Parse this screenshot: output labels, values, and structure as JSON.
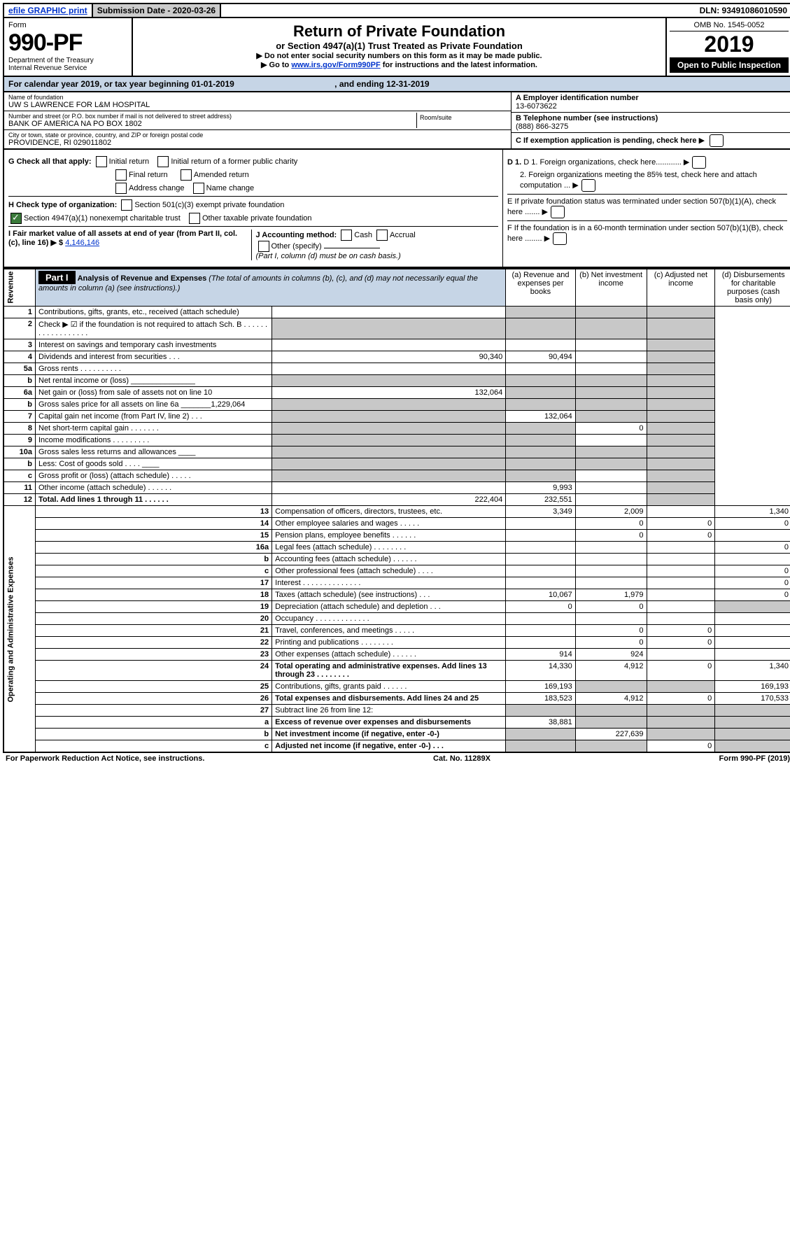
{
  "topbar": {
    "efile": "efile GRAPHIC print",
    "submission_label": "Submission Date - 2020-03-26",
    "dln": "DLN: 93491086010590"
  },
  "header": {
    "form_label": "Form",
    "form_number": "990-PF",
    "dept1": "Department of the Treasury",
    "dept2": "Internal Revenue Service",
    "title": "Return of Private Foundation",
    "subtitle": "or Section 4947(a)(1) Trust Treated as Private Foundation",
    "note1": "▶ Do not enter social security numbers on this form as it may be made public.",
    "note2_pre": "▶ Go to ",
    "note2_link": "www.irs.gov/Form990PF",
    "note2_post": " for instructions and the latest information.",
    "omb": "OMB No. 1545-0052",
    "year": "2019",
    "open": "Open to Public Inspection"
  },
  "calyear": {
    "text_a": "For calendar year 2019, or tax year beginning 01-01-2019",
    "text_b": ", and ending 12-31-2019"
  },
  "info": {
    "name_lbl": "Name of foundation",
    "name": "UW S LAWRENCE FOR L&M HOSPITAL",
    "addr_lbl": "Number and street (or P.O. box number if mail is not delivered to street address)",
    "addr": "BANK OF AMERICA NA PO BOX 1802",
    "room_lbl": "Room/suite",
    "city_lbl": "City or town, state or province, country, and ZIP or foreign postal code",
    "city": "PROVIDENCE, RI  029011802",
    "A_lbl": "A Employer identification number",
    "A_val": "13-6073622",
    "B_lbl": "B Telephone number (see instructions)",
    "B_val": "(888) 866-3275",
    "C_lbl": "C If exemption application is pending, check here"
  },
  "checks": {
    "G": "G Check all that apply:",
    "g_initial": "Initial return",
    "g_initial_pc": "Initial return of a former public charity",
    "g_final": "Final return",
    "g_amended": "Amended return",
    "g_addr": "Address change",
    "g_name": "Name change",
    "H": "H Check type of organization:",
    "h_501c3": "Section 501(c)(3) exempt private foundation",
    "h_4947": "Section 4947(a)(1) nonexempt charitable trust",
    "h_other": "Other taxable private foundation",
    "I": "I Fair market value of all assets at end of year (from Part II, col. (c), line 16) ▶ $",
    "I_val": "4,146,146",
    "J": "J Accounting method:",
    "j_cash": "Cash",
    "j_accrual": "Accrual",
    "j_other": "Other (specify)",
    "j_note": "(Part I, column (d) must be on cash basis.)",
    "D1": "D 1. Foreign organizations, check here............",
    "D2": "2. Foreign organizations meeting the 85% test, check here and attach computation ...",
    "E": "E  If private foundation status was terminated under section 507(b)(1)(A), check here .......",
    "F": "F  If the foundation is in a 60-month termination under section 507(b)(1)(B), check here ........"
  },
  "part1": {
    "label": "Part I",
    "title": "Analysis of Revenue and Expenses",
    "title_note": " (The total of amounts in columns (b), (c), and (d) may not necessarily equal the amounts in column (a) (see instructions).)",
    "col_a": "(a) Revenue and expenses per books",
    "col_b": "(b) Net investment income",
    "col_c": "(c) Adjusted net income",
    "col_d": "(d) Disbursements for charitable purposes (cash basis only)"
  },
  "side_labels": {
    "rev": "Revenue",
    "exp": "Operating and Administrative Expenses"
  },
  "rows": [
    {
      "n": "1",
      "t": "Contributions, gifts, grants, etc., received (attach schedule)",
      "a": "",
      "b": "",
      "c": "",
      "d": "",
      "sb": true,
      "sc": true,
      "sd": true
    },
    {
      "n": "2",
      "t": "Check ▶ ☑ if the foundation is not required to attach Sch. B  . . . . . . . . . . . . . . . . . .",
      "a": "",
      "b": "",
      "c": "",
      "d": "",
      "sa": true,
      "sb": true,
      "sc": true,
      "sd": true
    },
    {
      "n": "3",
      "t": "Interest on savings and temporary cash investments",
      "a": "",
      "b": "",
      "c": "",
      "d": "",
      "sd": true
    },
    {
      "n": "4",
      "t": "Dividends and interest from securities  . . .",
      "a": "90,340",
      "b": "90,494",
      "c": "",
      "d": "",
      "sd": true
    },
    {
      "n": "5a",
      "t": "Gross rents  . . . . . . . . . .",
      "a": "",
      "b": "",
      "c": "",
      "d": "",
      "sd": true
    },
    {
      "n": "b",
      "t": "Net rental income or (loss)  _______________",
      "a": "",
      "b": "",
      "c": "",
      "d": "",
      "sa": true,
      "sb": true,
      "sc": true,
      "sd": true
    },
    {
      "n": "6a",
      "t": "Net gain or (loss) from sale of assets not on line 10",
      "a": "132,064",
      "b": "",
      "c": "",
      "d": "",
      "sb": true,
      "sc": true,
      "sd": true
    },
    {
      "n": "b",
      "t": "Gross sales price for all assets on line 6a _______1,229,064",
      "a": "",
      "b": "",
      "c": "",
      "d": "",
      "sa": true,
      "sb": true,
      "sc": true,
      "sd": true
    },
    {
      "n": "7",
      "t": "Capital gain net income (from Part IV, line 2)  . . .",
      "a": "",
      "b": "132,064",
      "c": "",
      "d": "",
      "sa": true,
      "sc": true,
      "sd": true
    },
    {
      "n": "8",
      "t": "Net short-term capital gain  . . . . . . .",
      "a": "",
      "b": "",
      "c": "0",
      "d": "",
      "sa": true,
      "sb": true,
      "sd": true
    },
    {
      "n": "9",
      "t": "Income modifications  . . . . . . . . .",
      "a": "",
      "b": "",
      "c": "",
      "d": "",
      "sa": true,
      "sb": true,
      "sd": true
    },
    {
      "n": "10a",
      "t": "Gross sales less returns and allowances  ____",
      "a": "",
      "b": "",
      "c": "",
      "d": "",
      "sa": true,
      "sb": true,
      "sc": true,
      "sd": true
    },
    {
      "n": "b",
      "t": "Less: Cost of goods sold  . . . . ____",
      "a": "",
      "b": "",
      "c": "",
      "d": "",
      "sa": true,
      "sb": true,
      "sc": true,
      "sd": true
    },
    {
      "n": "c",
      "t": "Gross profit or (loss) (attach schedule)  . . . . .",
      "a": "",
      "b": "",
      "c": "",
      "d": "",
      "sa": true,
      "sb": true,
      "sd": true
    },
    {
      "n": "11",
      "t": "Other income (attach schedule)  . . . . . .",
      "a": "",
      "b": "9,993",
      "c": "",
      "d": "",
      "sd": true
    },
    {
      "n": "12",
      "t": "Total. Add lines 1 through 11  . . . . . .",
      "a": "222,404",
      "b": "232,551",
      "c": "",
      "d": "",
      "sd": true,
      "bold": true
    },
    {
      "n": "13",
      "t": "Compensation of officers, directors, trustees, etc.",
      "a": "3,349",
      "b": "2,009",
      "c": "",
      "d": "1,340"
    },
    {
      "n": "14",
      "t": "Other employee salaries and wages  . . . . .",
      "a": "",
      "b": "0",
      "c": "0",
      "d": "0"
    },
    {
      "n": "15",
      "t": "Pension plans, employee benefits  . . . . . .",
      "a": "",
      "b": "0",
      "c": "0",
      "d": ""
    },
    {
      "n": "16a",
      "t": "Legal fees (attach schedule)  . . . . . . . .",
      "a": "",
      "b": "",
      "c": "",
      "d": "0"
    },
    {
      "n": "b",
      "t": "Accounting fees (attach schedule)  . . . . . .",
      "a": "",
      "b": "",
      "c": "",
      "d": ""
    },
    {
      "n": "c",
      "t": "Other professional fees (attach schedule)  . . . .",
      "a": "",
      "b": "",
      "c": "",
      "d": "0"
    },
    {
      "n": "17",
      "t": "Interest  . . . . . . . . . . . . . .",
      "a": "",
      "b": "",
      "c": "",
      "d": "0"
    },
    {
      "n": "18",
      "t": "Taxes (attach schedule) (see instructions)  . . .",
      "a": "10,067",
      "b": "1,979",
      "c": "",
      "d": "0"
    },
    {
      "n": "19",
      "t": "Depreciation (attach schedule) and depletion  . . .",
      "a": "0",
      "b": "0",
      "c": "",
      "d": "",
      "sd": true
    },
    {
      "n": "20",
      "t": "Occupancy  . . . . . . . . . . . . .",
      "a": "",
      "b": "",
      "c": "",
      "d": ""
    },
    {
      "n": "21",
      "t": "Travel, conferences, and meetings  . . . . .",
      "a": "",
      "b": "0",
      "c": "0",
      "d": ""
    },
    {
      "n": "22",
      "t": "Printing and publications  . . . . . . . .",
      "a": "",
      "b": "0",
      "c": "0",
      "d": ""
    },
    {
      "n": "23",
      "t": "Other expenses (attach schedule)  . . . . . .",
      "a": "914",
      "b": "924",
      "c": "",
      "d": ""
    },
    {
      "n": "24",
      "t": "Total operating and administrative expenses. Add lines 13 through 23  . . . . . . . .",
      "a": "14,330",
      "b": "4,912",
      "c": "0",
      "d": "1,340",
      "bold": true
    },
    {
      "n": "25",
      "t": "Contributions, gifts, grants paid  . . . . . .",
      "a": "169,193",
      "b": "",
      "c": "",
      "d": "169,193",
      "sb": true,
      "sc": true
    },
    {
      "n": "26",
      "t": "Total expenses and disbursements. Add lines 24 and 25",
      "a": "183,523",
      "b": "4,912",
      "c": "0",
      "d": "170,533",
      "bold": true
    },
    {
      "n": "27",
      "t": "Subtract line 26 from line 12:",
      "a": "",
      "b": "",
      "c": "",
      "d": "",
      "sa": true,
      "sb": true,
      "sc": true,
      "sd": true
    },
    {
      "n": "a",
      "t": "Excess of revenue over expenses and disbursements",
      "a": "38,881",
      "b": "",
      "c": "",
      "d": "",
      "sb": true,
      "sc": true,
      "sd": true,
      "bold": true
    },
    {
      "n": "b",
      "t": "Net investment income (if negative, enter -0-)",
      "a": "",
      "b": "227,639",
      "c": "",
      "d": "",
      "sa": true,
      "sc": true,
      "sd": true,
      "bold": true
    },
    {
      "n": "c",
      "t": "Adjusted net income (if negative, enter -0-)  . . .",
      "a": "",
      "b": "",
      "c": "0",
      "d": "",
      "sa": true,
      "sb": true,
      "sd": true,
      "bold": true
    }
  ],
  "footer": {
    "left": "For Paperwork Reduction Act Notice, see instructions.",
    "mid": "Cat. No. 11289X",
    "right": "Form 990-PF (2019)"
  }
}
